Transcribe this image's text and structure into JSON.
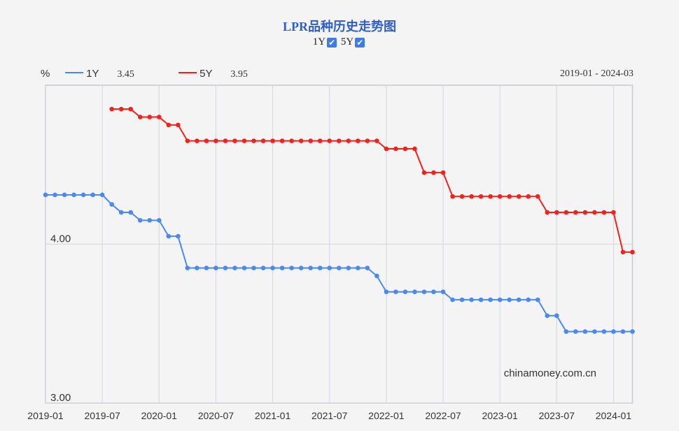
{
  "title": "LPR品种历史走势图",
  "toggles": [
    {
      "label": "1Y",
      "checked": true
    },
    {
      "label": "5Y",
      "checked": true
    }
  ],
  "unit": "%",
  "legend": [
    {
      "name": "1Y",
      "latest": "3.45",
      "color": "#4a8af0"
    },
    {
      "name": "5Y",
      "latest": "3.95",
      "color": "#f0221a"
    }
  ],
  "range_label": "2019-01 - 2024-03",
  "watermark": "chinamoney.com.cn",
  "chart_data": {
    "type": "line",
    "title": "LPR品种历史走势图",
    "ylabel": "%",
    "ylim": [
      3,
      5
    ],
    "xlim": [
      "2019-01",
      "2024-03"
    ],
    "y_ticks": [
      "3.00",
      "4.00"
    ],
    "x_ticks": [
      "2019-01",
      "2019-07",
      "2020-01",
      "2020-07",
      "2021-01",
      "2021-07",
      "2022-01",
      "2022-07",
      "2023-01",
      "2023-07",
      "2024-01"
    ],
    "grid": true,
    "legend_position": "top-left",
    "series": [
      {
        "name": "1Y",
        "color": "#4a8af0",
        "start": "2019-01",
        "values": [
          4.31,
          4.31,
          4.31,
          4.31,
          4.31,
          4.31,
          4.31,
          4.25,
          4.2,
          4.2,
          4.15,
          4.15,
          4.15,
          4.05,
          4.05,
          3.85,
          3.85,
          3.85,
          3.85,
          3.85,
          3.85,
          3.85,
          3.85,
          3.85,
          3.85,
          3.85,
          3.85,
          3.85,
          3.85,
          3.85,
          3.85,
          3.85,
          3.85,
          3.85,
          3.85,
          3.8,
          3.7,
          3.7,
          3.7,
          3.7,
          3.7,
          3.7,
          3.7,
          3.65,
          3.65,
          3.65,
          3.65,
          3.65,
          3.65,
          3.65,
          3.65,
          3.65,
          3.65,
          3.55,
          3.55,
          3.45,
          3.45,
          3.45,
          3.45,
          3.45,
          3.45,
          3.45,
          3.45
        ]
      },
      {
        "name": "5Y",
        "color": "#f0221a",
        "start": "2019-08",
        "values": [
          4.85,
          4.85,
          4.85,
          4.8,
          4.8,
          4.8,
          4.75,
          4.75,
          4.65,
          4.65,
          4.65,
          4.65,
          4.65,
          4.65,
          4.65,
          4.65,
          4.65,
          4.65,
          4.65,
          4.65,
          4.65,
          4.65,
          4.65,
          4.65,
          4.65,
          4.65,
          4.65,
          4.65,
          4.65,
          4.6,
          4.6,
          4.6,
          4.6,
          4.45,
          4.45,
          4.45,
          4.3,
          4.3,
          4.3,
          4.3,
          4.3,
          4.3,
          4.3,
          4.3,
          4.3,
          4.3,
          4.2,
          4.2,
          4.2,
          4.2,
          4.2,
          4.2,
          4.2,
          4.2,
          3.95,
          3.95
        ]
      }
    ]
  }
}
